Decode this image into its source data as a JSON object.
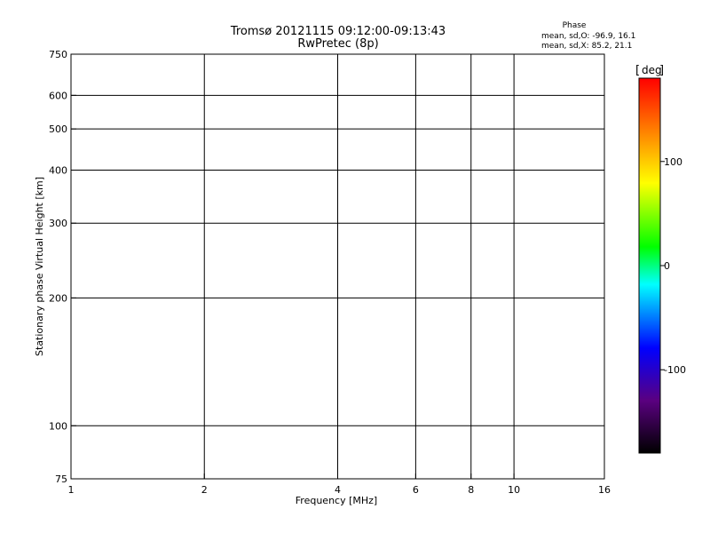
{
  "chart_data": {
    "type": "scatter",
    "title": "Tromsø 20121115 09:12:00-09:13:43",
    "subtitle": "RwPretec (8p)",
    "xlabel": "Frequency [MHz]",
    "ylabel": "Stationary phase Virtual Height [km]",
    "x_scale": "log",
    "y_scale": "log",
    "xlim": [
      1,
      16
    ],
    "ylim": [
      75,
      750
    ],
    "x_ticks": [
      1,
      2,
      4,
      6,
      8,
      10,
      16
    ],
    "y_ticks": [
      75,
      100,
      200,
      300,
      400,
      500,
      600,
      750
    ],
    "x_tick_labels": [
      "1",
      "2",
      "4",
      "6",
      "8",
      "10",
      "16"
    ],
    "y_tick_labels": [
      "75",
      "100",
      "200",
      "300",
      "400",
      "500",
      "600",
      "750"
    ],
    "grid_x": [
      2,
      4,
      6,
      8,
      10
    ],
    "grid_y": [
      100,
      200,
      300,
      400,
      500,
      600
    ],
    "points": [],
    "stats": {
      "title": "Phase",
      "line_o": "mean, sd,O: -96.9, 16.1",
      "line_x": "mean, sd,X:  85.2, 21.1"
    },
    "colorbar": {
      "label": "deg",
      "ticks": [
        -100,
        0,
        100
      ],
      "tick_labels": [
        "-100",
        "0",
        "100"
      ],
      "range": [
        -180,
        180
      ],
      "colors": [
        "#000000",
        "#5a0080",
        "#0000ff",
        "#00ffff",
        "#00ff00",
        "#ffff00",
        "#ff8000",
        "#ff0000"
      ]
    }
  }
}
